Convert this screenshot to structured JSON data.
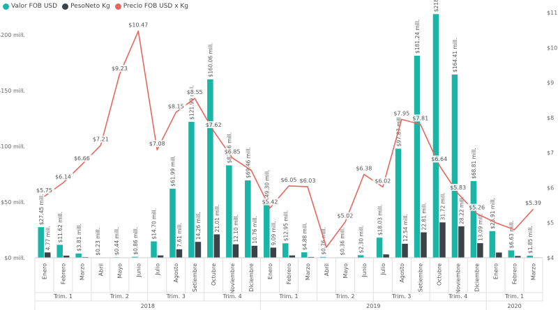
{
  "chart_data": {
    "type": "bar",
    "title": "",
    "legend": {
      "placement": "top-left",
      "entries": [
        {
          "label": "Valor FOB USD",
          "color": "#1ab5a6"
        },
        {
          "label": "PesoNeto Kg",
          "color": "#3b4348"
        },
        {
          "label": "Precio FOB USD x Kg",
          "color": "#e8665e"
        }
      ]
    },
    "categories": [
      "Enero",
      "Febrero",
      "Marzo",
      "Abril",
      "Mayo",
      "Junio",
      "Julio",
      "Agosto",
      "Setiembre",
      "Octubre",
      "Noviembre",
      "Diciembre",
      "Enero",
      "Febrero",
      "Marzo",
      "Abril",
      "Mayo",
      "Junio",
      "Julio",
      "Agosto",
      "Setiembre",
      "Octubre",
      "Noviembre",
      "Diciembre",
      "Enero",
      "Febrero",
      "Marzo"
    ],
    "quarters": [
      {
        "label": "Trim. 1",
        "span": 3
      },
      {
        "label": "Trim. 2",
        "span": 3
      },
      {
        "label": "Trim. 3",
        "span": 3
      },
      {
        "label": "Trim. 4",
        "span": 3
      },
      {
        "label": "Trim. 1",
        "span": 3
      },
      {
        "label": "Trim. 2",
        "span": 3
      },
      {
        "label": "Trim. 3",
        "span": 3
      },
      {
        "label": "Trim. 4",
        "span": 3
      },
      {
        "label": "Trim. 1",
        "span": 3
      }
    ],
    "years": [
      {
        "label": "2018",
        "span": 12
      },
      {
        "label": "2019",
        "span": 12
      },
      {
        "label": "2020",
        "span": 3
      }
    ],
    "series": [
      {
        "name": "Valor FOB USD",
        "type": "bar",
        "axis": "left",
        "values": [
          27.45,
          11.62,
          3.81,
          0.23,
          0.44,
          0.86,
          14.7,
          61.99,
          121.99,
          160.06,
          82.86,
          69.46,
          49.3,
          12.95,
          4.88,
          0.76,
          0.36,
          2.3,
          18.03,
          97.87,
          181.24,
          218.59,
          164.41,
          68.81,
          23.91,
          6.63,
          1.85
        ],
        "labels": [
          "$27.45 mill.",
          "$11.62 mill.",
          "$3.81 mill.",
          "$0.23 mill.",
          "$0.44 mill.",
          "$0.86 mill.",
          "$14.70 mill.",
          "$61.99 mill.",
          "$121.99 mill.",
          "$160.06 mill.",
          "$82.86 mill.",
          "$69.46 mill.",
          "$49.30 mill.",
          "$12.95 mill.",
          "$4.88 mill.",
          "$0.76 mill.",
          "$0.36 mill.",
          "$2.30 mill.",
          "$18.03 mill.",
          "$97.87 mill.",
          "$181.24 mill.",
          "$218.59 mill.",
          "$164.41 mill.",
          "$68.81 mill.",
          "$23.91 mill.",
          "$6.63 mill.",
          "$1.85 mill."
        ]
      },
      {
        "name": "PesoNeto Kg",
        "type": "bar",
        "axis": "left",
        "values": [
          4.77,
          1.9,
          0.6,
          0.05,
          0.08,
          0.15,
          2.1,
          7.61,
          14.26,
          21.01,
          12.1,
          10.76,
          9.09,
          2.1,
          0.7,
          0.15,
          0.07,
          0.35,
          3.0,
          12.54,
          22.81,
          31.72,
          28.22,
          13.09,
          4.7,
          1.6,
          0.35
        ],
        "labels": [
          "4.77 mill.",
          "",
          "",
          "",
          "",
          "",
          "",
          "7.61 mill.",
          "14.26 mill.",
          "21.01 mill.",
          "12.10 mill.",
          "10.76 mill.",
          "9.09 mill.",
          "",
          "",
          "",
          "",
          "",
          "",
          "12.54 mill.",
          "22.81 mill.",
          "31.72 mill.",
          "28.22 mill.",
          "13.09 mill.",
          "",
          "",
          ""
        ]
      },
      {
        "name": "Precio FOB USD x Kg",
        "type": "line",
        "axis": "right",
        "values": [
          5.75,
          6.14,
          6.66,
          7.21,
          9.23,
          10.47,
          7.08,
          8.15,
          8.55,
          7.62,
          6.85,
          6.5,
          5.42,
          6.05,
          6.03,
          4.3,
          5.02,
          6.38,
          6.02,
          7.95,
          7.81,
          6.64,
          5.83,
          5.26,
          5.0,
          4.8,
          5.39
        ],
        "labels": [
          "$5.75",
          "$6.14",
          "$6.66",
          "$7.21",
          "$9.23",
          "$10.47",
          "$7.08",
          "$8.15",
          "$8.55",
          "$7.62",
          "$6.85",
          "",
          "$5.42",
          "$6.05",
          "$6.03",
          "",
          "$5.02",
          "$6.38",
          "$6.02",
          "$7.95",
          "$7.81",
          "$6.64",
          "$5.83",
          "$5.26",
          "",
          "",
          "$5.39"
        ]
      }
    ],
    "y_left": {
      "range": [
        0,
        220
      ],
      "ticks": [
        0,
        50,
        100,
        150,
        200
      ],
      "tick_labels": [
        "$0 mill.",
        "$50 mill.",
        "$100 mill.",
        "$150 mill.",
        "$200 mill."
      ]
    },
    "y_right": {
      "range": [
        4,
        11
      ],
      "ticks": [
        4,
        5,
        6,
        7,
        8,
        9,
        10,
        11
      ],
      "tick_labels": [
        "$4",
        "$5",
        "$6",
        "$7",
        "$8",
        "$9",
        "$10",
        "$11"
      ]
    },
    "grid": false
  }
}
